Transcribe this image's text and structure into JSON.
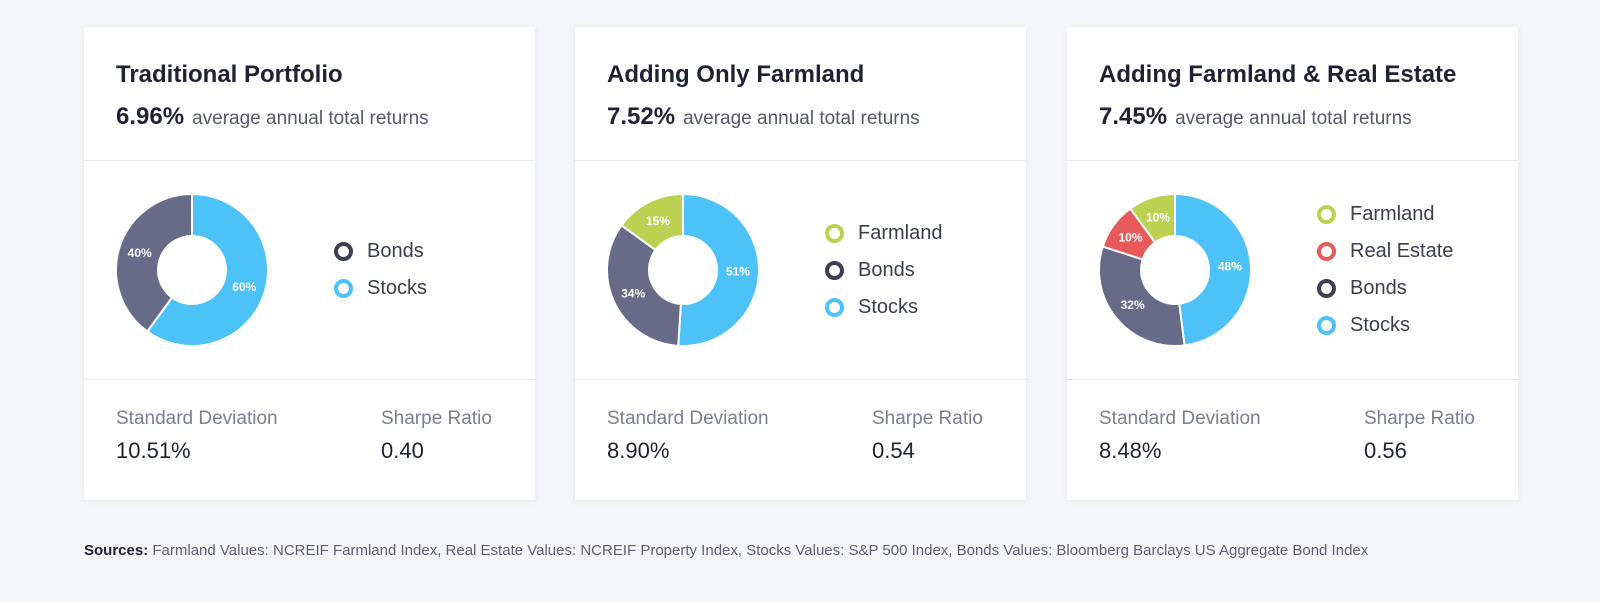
{
  "colors": {
    "farmland": "#bcd152",
    "real_estate": "#e85a5a",
    "bonds": "#676b88",
    "bonds_legend": "#3d3f52",
    "stocks": "#4cc2f8"
  },
  "chart_data": [
    {
      "type": "pie",
      "title": "Traditional Portfolio",
      "return_value": "6.96%",
      "return_label": "average annual total returns",
      "legend": [
        {
          "label": "Bonds",
          "key": "bonds"
        },
        {
          "label": "Stocks",
          "key": "stocks"
        }
      ],
      "slices": [
        {
          "name": "Stocks",
          "key": "stocks",
          "value": 60,
          "label": "60%"
        },
        {
          "name": "Bonds",
          "key": "bonds",
          "value": 40,
          "label": "40%"
        }
      ],
      "stats": {
        "std_label": "Standard Deviation",
        "std_value": "10.51%",
        "sharpe_label": "Sharpe Ratio",
        "sharpe_value": "0.40"
      }
    },
    {
      "type": "pie",
      "title": "Adding Only Farmland",
      "return_value": "7.52%",
      "return_label": "average annual total returns",
      "legend": [
        {
          "label": "Farmland",
          "key": "farmland"
        },
        {
          "label": "Bonds",
          "key": "bonds"
        },
        {
          "label": "Stocks",
          "key": "stocks"
        }
      ],
      "slices": [
        {
          "name": "Stocks",
          "key": "stocks",
          "value": 51,
          "label": "51%"
        },
        {
          "name": "Bonds",
          "key": "bonds",
          "value": 34,
          "label": "34%"
        },
        {
          "name": "Farmland",
          "key": "farmland",
          "value": 15,
          "label": "15%"
        }
      ],
      "stats": {
        "std_label": "Standard Deviation",
        "std_value": "8.90%",
        "sharpe_label": "Sharpe Ratio",
        "sharpe_value": "0.54"
      }
    },
    {
      "type": "pie",
      "title": "Adding Farmland & Real Estate",
      "return_value": "7.45%",
      "return_label": "average annual total returns",
      "legend": [
        {
          "label": "Farmland",
          "key": "farmland"
        },
        {
          "label": "Real Estate",
          "key": "real_estate"
        },
        {
          "label": "Bonds",
          "key": "bonds"
        },
        {
          "label": "Stocks",
          "key": "stocks"
        }
      ],
      "slices": [
        {
          "name": "Stocks",
          "key": "stocks",
          "value": 48,
          "label": "48%"
        },
        {
          "name": "Bonds",
          "key": "bonds",
          "value": 32,
          "label": "32%"
        },
        {
          "name": "Real Estate",
          "key": "real_estate",
          "value": 10,
          "label": "10%"
        },
        {
          "name": "Farmland",
          "key": "farmland",
          "value": 10,
          "label": "10%"
        }
      ],
      "stats": {
        "std_label": "Standard Deviation",
        "std_value": "8.48%",
        "sharpe_label": "Sharpe Ratio",
        "sharpe_value": "0.56"
      }
    }
  ],
  "sources": {
    "label": "Sources:",
    "text": "Farmland Values: NCREIF Farmland Index, Real Estate Values: NCREIF Property Index, Stocks Values: S&P 500 Index, Bonds Values: Bloomberg Barclays US Aggregate Bond Index"
  }
}
